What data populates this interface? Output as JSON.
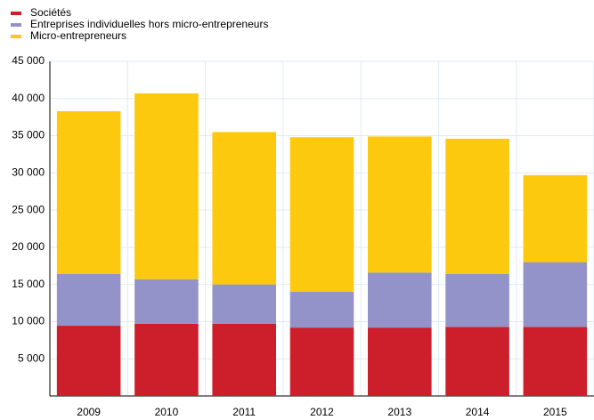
{
  "chart_data": {
    "type": "stacked_bar",
    "categories": [
      "2009",
      "2010",
      "2011",
      "2012",
      "2013",
      "2014",
      "2015"
    ],
    "series": [
      {
        "name": "Sociétés",
        "color": "#cc1f2b",
        "values": [
          9450,
          9700,
          9700,
          9200,
          9200,
          9300,
          9300
        ]
      },
      {
        "name": "Entreprises individuelles hors micro-entrepreneurs",
        "color": "#9393c9",
        "values": [
          6950,
          6000,
          5300,
          4800,
          7400,
          7100,
          8700
        ]
      },
      {
        "name": "Micro-entrepreneurs",
        "color": "#fcc90e",
        "values": [
          21900,
          25000,
          20500,
          20800,
          18300,
          18200,
          11700
        ]
      }
    ],
    "ylim": [
      0,
      45000
    ],
    "yticks": [
      {
        "value": 5000,
        "label": "5 000"
      },
      {
        "value": 10000,
        "label": "10 000"
      },
      {
        "value": 15000,
        "label": "15 000"
      },
      {
        "value": 20000,
        "label": "20 000"
      },
      {
        "value": 25000,
        "label": "25 000"
      },
      {
        "value": 30000,
        "label": "30 000"
      },
      {
        "value": 35000,
        "label": "35 000"
      },
      {
        "value": 40000,
        "label": "40 000"
      },
      {
        "value": 45000,
        "label": "45 000"
      }
    ],
    "grid": true,
    "legend": "top-left"
  }
}
